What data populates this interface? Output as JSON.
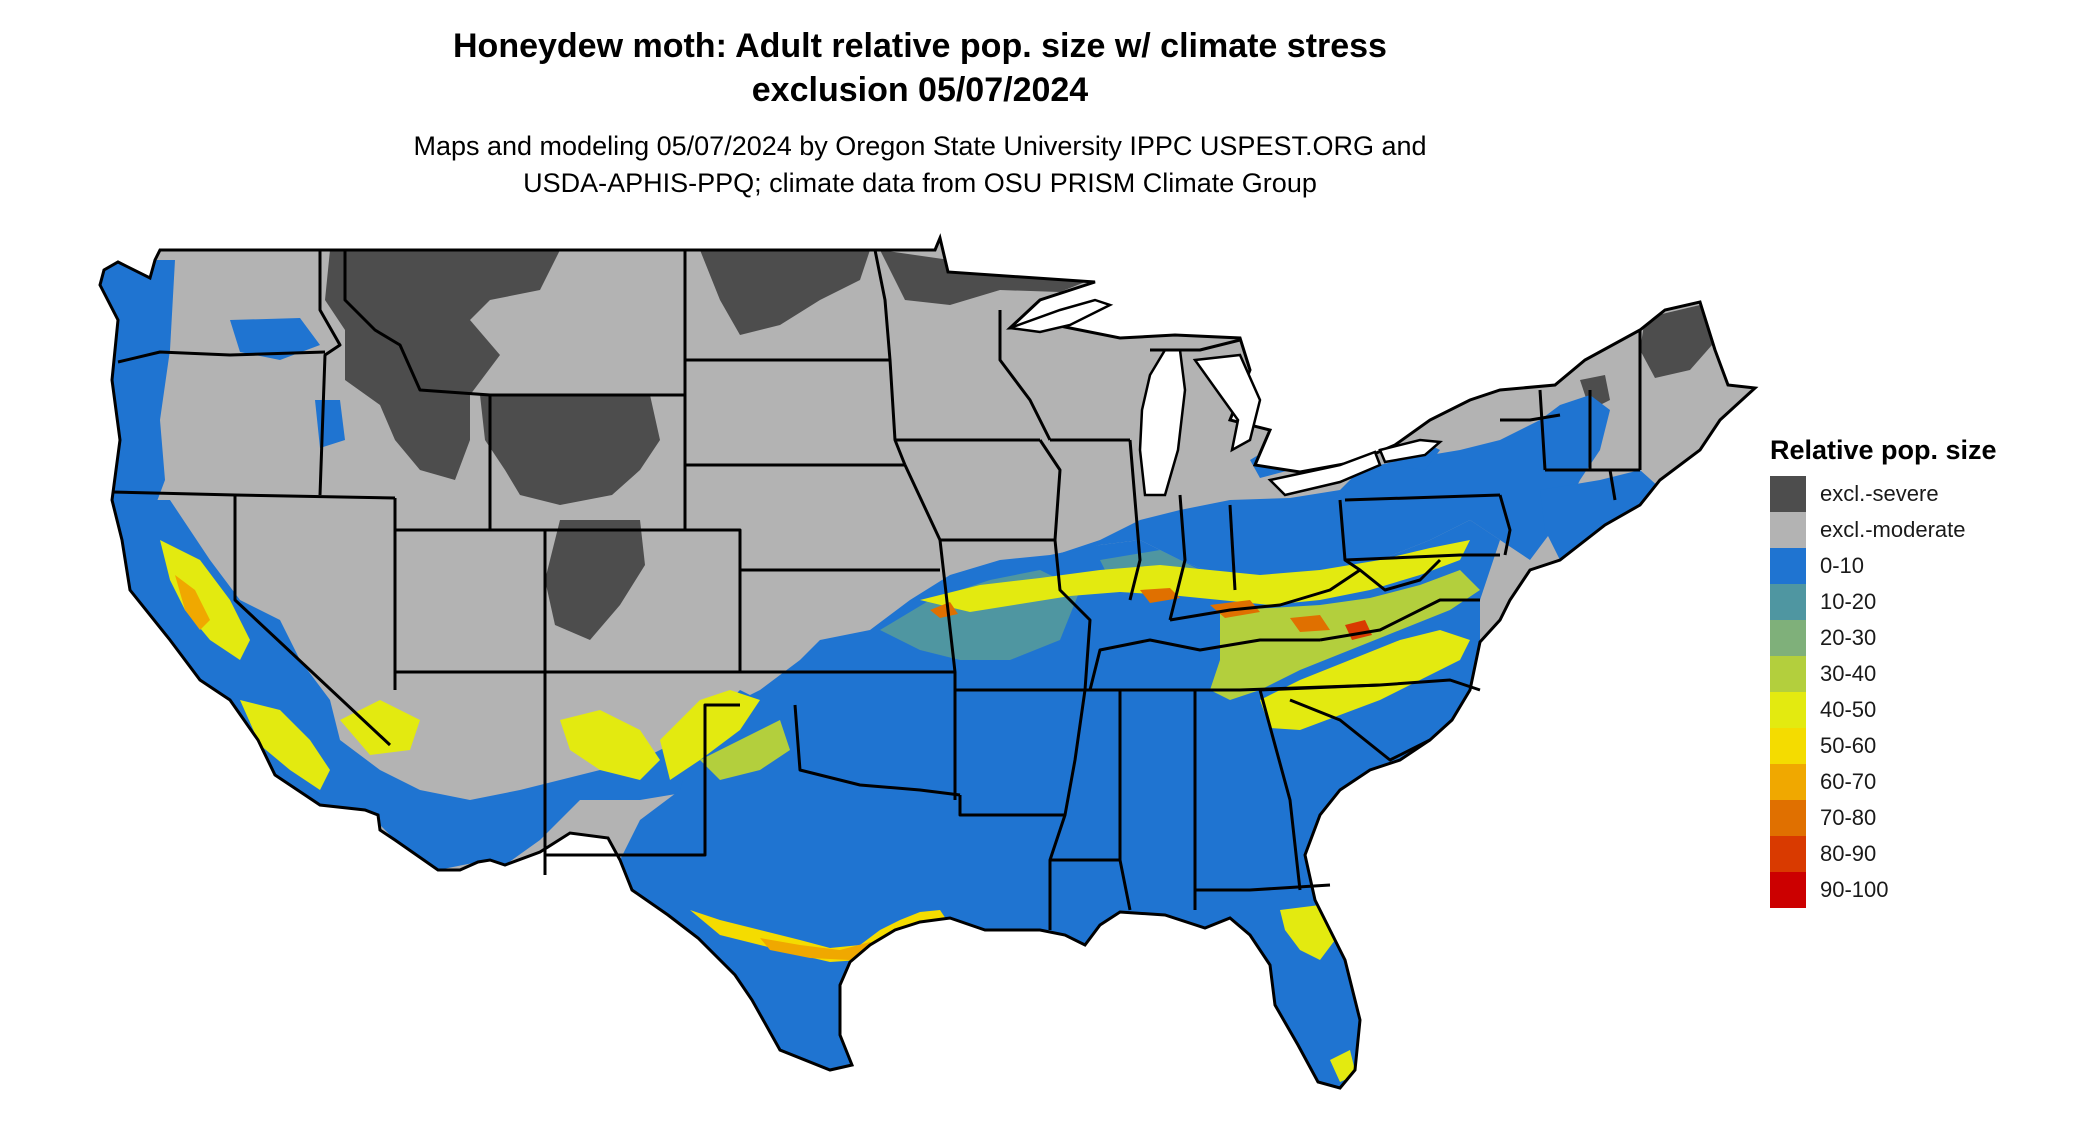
{
  "title_line1": "Honeydew moth: Adult relative pop. size w/ climate stress",
  "title_line2": "exclusion 05/07/2024",
  "subtitle_line1": "Maps and modeling 05/07/2024 by Oregon State University IPPC USPEST.ORG and",
  "subtitle_line2": "USDA-APHIS-PPQ; climate data from OSU PRISM Climate Group",
  "legend": {
    "title": "Relative pop. size",
    "items": [
      {
        "label": "excl.-severe",
        "color": "#4d4d4d"
      },
      {
        "label": "excl.-moderate",
        "color": "#b3b3b3"
      },
      {
        "label": "0-10",
        "color": "#1f74d1"
      },
      {
        "label": "10-20",
        "color": "#4f96a1"
      },
      {
        "label": "20-30",
        "color": "#7fb07a"
      },
      {
        "label": "30-40",
        "color": "#b3cf3d"
      },
      {
        "label": "40-50",
        "color": "#e3ea10"
      },
      {
        "label": "50-60",
        "color": "#f4dc00"
      },
      {
        "label": "60-70",
        "color": "#f0a800"
      },
      {
        "label": "70-80",
        "color": "#e07000"
      },
      {
        "label": "80-90",
        "color": "#d93a00"
      },
      {
        "label": "90-100",
        "color": "#cc0000"
      }
    ]
  }
}
